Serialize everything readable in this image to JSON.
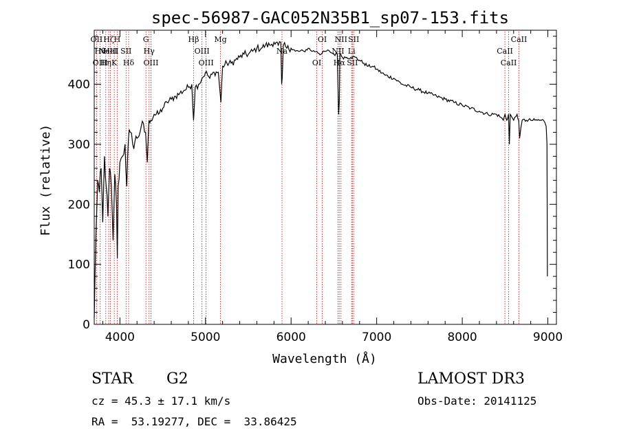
{
  "chart_data": {
    "type": "line",
    "title": "spec-56987-GAC052N35B1_sp07-153.fits",
    "xlabel": "Wavelength (Å)",
    "ylabel": "Flux (relative)",
    "xlim": [
      3700,
      9100
    ],
    "ylim": [
      0,
      490
    ],
    "xticks": [
      4000,
      5000,
      6000,
      7000,
      8000,
      9000
    ],
    "yticks": [
      0,
      100,
      200,
      300,
      400
    ],
    "grid": false,
    "series": [
      {
        "name": "flux",
        "x": [
          3700,
          3720,
          3740,
          3760,
          3780,
          3800,
          3820,
          3840,
          3860,
          3880,
          3900,
          3920,
          3940,
          3960,
          3970,
          3980,
          4000,
          4030,
          4060,
          4080,
          4100,
          4120,
          4150,
          4200,
          4250,
          4300,
          4320,
          4340,
          4360,
          4400,
          4450,
          4500,
          4550,
          4600,
          4650,
          4700,
          4750,
          4800,
          4840,
          4860,
          4880,
          4920,
          4960,
          5000,
          5050,
          5100,
          5150,
          5180,
          5200,
          5250,
          5300,
          5350,
          5400,
          5450,
          5500,
          5550,
          5600,
          5650,
          5700,
          5750,
          5800,
          5850,
          5880,
          5890,
          5896,
          5910,
          5950,
          6000,
          6050,
          6100,
          6150,
          6200,
          6250,
          6300,
          6350,
          6400,
          6450,
          6500,
          6540,
          6555,
          6563,
          6570,
          6580,
          6600,
          6650,
          6700,
          6750,
          6800,
          6850,
          6900,
          6950,
          7000,
          7100,
          7200,
          7300,
          7400,
          7500,
          7600,
          7700,
          7800,
          7900,
          8000,
          8100,
          8200,
          8300,
          8400,
          8450,
          8480,
          8500,
          8520,
          8540,
          8550,
          8560,
          8580,
          8600,
          8640,
          8660,
          8670,
          8700,
          8750,
          8800,
          8850,
          8900,
          8950,
          8980,
          8990,
          8995
        ],
        "values": [
          10,
          150,
          240,
          220,
          260,
          170,
          280,
          230,
          180,
          260,
          230,
          140,
          250,
          200,
          110,
          230,
          270,
          280,
          300,
          230,
          310,
          320,
          300,
          310,
          330,
          320,
          270,
          340,
          340,
          350,
          350,
          360,
          370,
          375,
          380,
          385,
          390,
          395,
          400,
          340,
          395,
          400,
          410,
          420,
          410,
          420,
          420,
          370,
          430,
          435,
          435,
          440,
          445,
          450,
          450,
          455,
          460,
          460,
          465,
          465,
          470,
          465,
          470,
          400,
          410,
          465,
          460,
          460,
          455,
          455,
          455,
          460,
          455,
          455,
          450,
          455,
          455,
          450,
          450,
          350,
          370,
          450,
          450,
          445,
          445,
          445,
          445,
          440,
          435,
          430,
          430,
          425,
          415,
          410,
          400,
          395,
          390,
          385,
          380,
          375,
          370,
          365,
          360,
          355,
          350,
          350,
          345,
          340,
          350,
          340,
          350,
          300,
          350,
          345,
          340,
          350,
          340,
          310,
          340,
          340,
          340,
          340,
          340,
          340,
          330,
          300,
          80
        ]
      }
    ],
    "lines": [
      {
        "wavelength": 3727,
        "labels": [
          "OII"
        ]
      },
      {
        "wavelength": 3770,
        "labels": [
          "Hθ",
          "OIII"
        ]
      },
      {
        "wavelength": 3835,
        "labels": [
          "Hη"
        ]
      },
      {
        "wavelength": 3869,
        "labels": [
          "Hζ",
          "NeIII"
        ]
      },
      {
        "wavelength": 3889,
        "labels": [
          "HeI"
        ]
      },
      {
        "wavelength": 3934,
        "labels": [
          "K"
        ]
      },
      {
        "wavelength": 3969,
        "labels": [
          "H"
        ]
      },
      {
        "wavelength": 4072,
        "labels": [
          "SII"
        ]
      },
      {
        "wavelength": 4102,
        "labels": [
          "Hδ"
        ]
      },
      {
        "wavelength": 4304,
        "labels": [
          "G"
        ]
      },
      {
        "wavelength": 4341,
        "labels": [
          "Hγ"
        ]
      },
      {
        "wavelength": 4363,
        "labels": [
          "OIII"
        ]
      },
      {
        "wavelength": 4861,
        "labels": [
          "Hβ"
        ]
      },
      {
        "wavelength": 4959,
        "labels": [
          "OIII"
        ]
      },
      {
        "wavelength": 5007,
        "labels": [
          "OIII"
        ]
      },
      {
        "wavelength": 5175,
        "labels": [
          "Mg"
        ]
      },
      {
        "wavelength": 5894,
        "labels": [
          "Na"
        ]
      },
      {
        "wavelength": 6300,
        "labels": [
          "OI"
        ]
      },
      {
        "wavelength": 6364,
        "labels": [
          "OI"
        ]
      },
      {
        "wavelength": 6548,
        "labels": [
          "NII"
        ]
      },
      {
        "wavelength": 6563,
        "labels": [
          "Hα"
        ]
      },
      {
        "wavelength": 6583,
        "labels": [
          "NII"
        ]
      },
      {
        "wavelength": 6707,
        "labels": [
          "Li"
        ]
      },
      {
        "wavelength": 6716,
        "labels": [
          "SII"
        ]
      },
      {
        "wavelength": 6731,
        "labels": [
          "SII"
        ]
      },
      {
        "wavelength": 8498,
        "labels": [
          "CaII"
        ]
      },
      {
        "wavelength": 8542,
        "labels": [
          "CaII"
        ]
      },
      {
        "wavelength": 8662,
        "labels": [
          "CaII"
        ]
      }
    ]
  },
  "info": {
    "object_type": "STAR",
    "subclass": "G2",
    "survey": "LAMOST DR3",
    "redshift": "cz = 45.3 ± 17.1 km/s",
    "obs_date": "Obs-Date: 20141125",
    "coords": "RA =  53.19277, DEC =  33.86425"
  },
  "colors": {
    "line_marker": "#cc0000",
    "spectrum": "#000000"
  }
}
